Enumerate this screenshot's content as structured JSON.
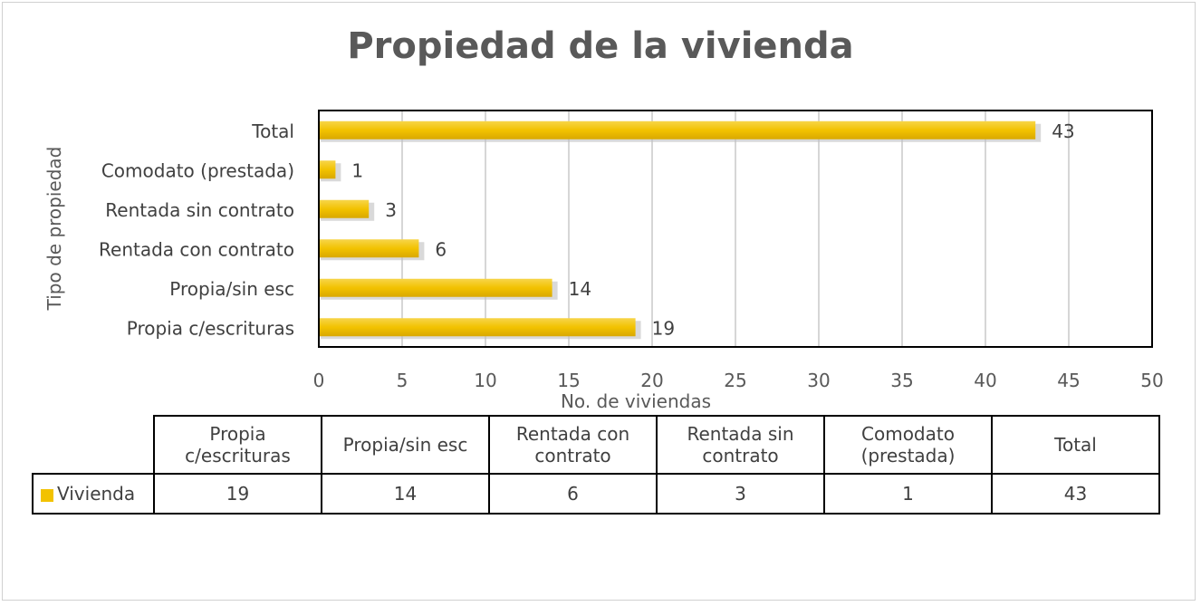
{
  "chart_data": {
    "type": "bar",
    "orientation": "horizontal",
    "title": "Propiedad de la vivienda",
    "xlabel": "No. de viviendas",
    "ylabel": "Tipo de propiedad",
    "xlim": [
      0,
      50
    ],
    "x_ticks": [
      "0",
      "5",
      "10",
      "15",
      "20",
      "25",
      "30",
      "35",
      "40",
      "45",
      "50"
    ],
    "grid": true,
    "bar_color": "#f2c200",
    "categories": [
      "Propia c/escrituras",
      "Propia/sin esc",
      "Rentada con contrato",
      "Rentada sin contrato",
      "Comodato (prestada)",
      "Total"
    ],
    "series": [
      {
        "name": "Vivienda",
        "values": [
          19,
          14,
          6,
          3,
          1,
          43
        ]
      }
    ],
    "data_table": {
      "headers": [
        "Propia c/escrituras",
        "Propia/sin esc",
        "Rentada con contrato",
        "Rentada sin contrato",
        "Comodato (prestada)",
        "Total"
      ],
      "row_label": "Vivienda",
      "values": [
        "19",
        "14",
        "6",
        "3",
        "1",
        "43"
      ]
    }
  }
}
